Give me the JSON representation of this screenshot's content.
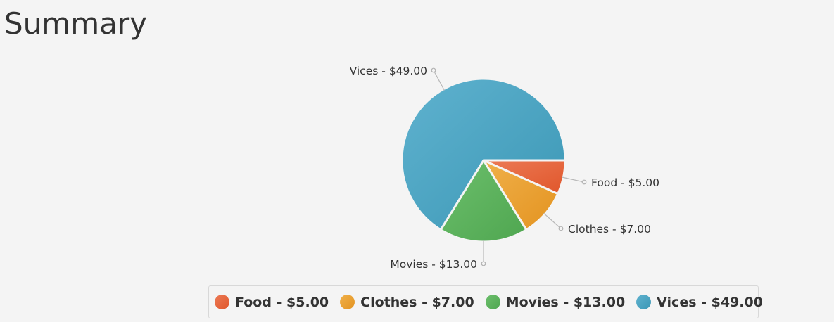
{
  "page": {
    "title": "Summary"
  },
  "chart_data": {
    "type": "pie",
    "title": "",
    "legend_position": "bottom",
    "labels_with_leader_lines": true,
    "start_angle_deg": 0,
    "direction": "clockwise",
    "slices": [
      {
        "name": "Food",
        "value": 5.0,
        "label": "Food - $5.00",
        "color": "#e0562b",
        "color_light": "#ec7a55"
      },
      {
        "name": "Clothes",
        "value": 7.0,
        "label": "Clothes - $7.00",
        "color": "#e39320",
        "color_light": "#f0b04a"
      },
      {
        "name": "Movies",
        "value": 13.0,
        "label": "Movies - $13.00",
        "color": "#4fa650",
        "color_light": "#6cbf6c"
      },
      {
        "name": "Vices",
        "value": 49.0,
        "label": "Vices - $49.00",
        "color": "#3b97b5",
        "color_light": "#5fb2cf"
      }
    ]
  }
}
